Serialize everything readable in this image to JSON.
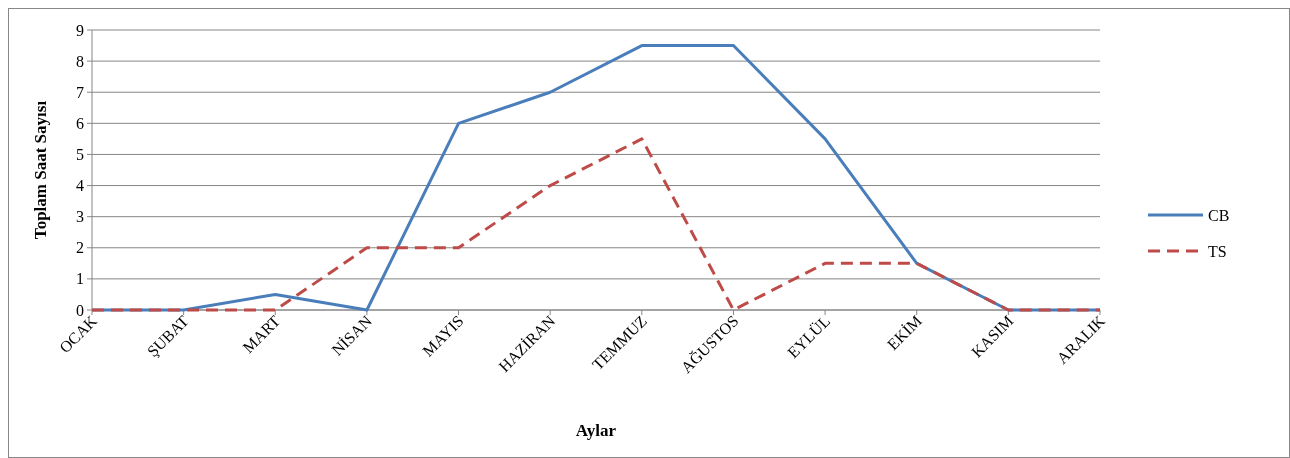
{
  "chart_data": {
    "type": "line",
    "xlabel": "Aylar",
    "ylabel": "Toplam Saat Sayısı",
    "categories": [
      "OCAK",
      "ŞUBAT",
      "MART",
      "NİSAN",
      "MAYIS",
      "HAZİRAN",
      "TEMMUZ",
      "AĞUSTOS",
      "EYLÜL",
      "EKİM",
      "KASIM",
      "ARALIK"
    ],
    "series": [
      {
        "name": "CB",
        "color": "#4a7ebb",
        "line_style": "solid",
        "values": [
          0,
          0,
          0.5,
          0,
          6,
          7,
          8.5,
          8.5,
          5.5,
          1.5,
          0,
          0
        ]
      },
      {
        "name": "TS",
        "color": "#be4b48",
        "line_style": "dashed",
        "values": [
          0,
          0,
          0,
          2,
          2,
          4,
          5.5,
          0,
          1.5,
          1.5,
          0,
          0
        ]
      }
    ],
    "ylim": [
      0,
      9
    ],
    "yticks": [
      0,
      1,
      2,
      3,
      4,
      5,
      6,
      7,
      8,
      9
    ],
    "grid": "y",
    "legend": "right",
    "marker": "none"
  }
}
